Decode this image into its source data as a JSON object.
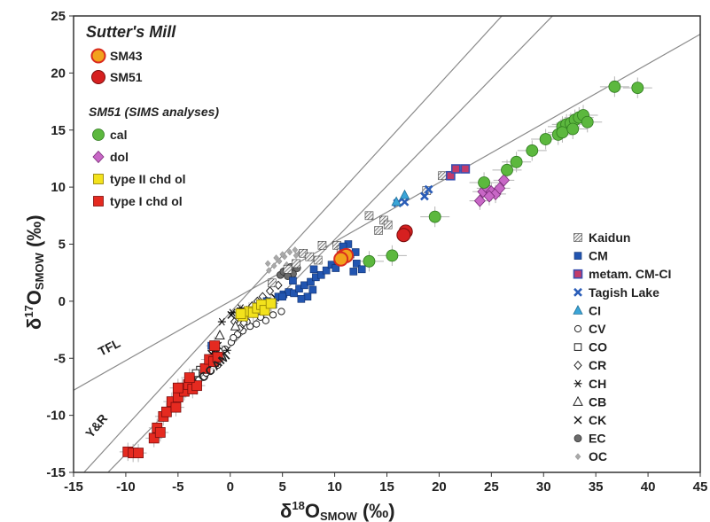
{
  "chart_data": {
    "type": "scatter",
    "title": "",
    "xlabel_main": "δ",
    "xlabel_sup": "18",
    "xlabel_o": "O",
    "xlabel_sub": "SMOW",
    "xlabel_unit": " (‰)",
    "ylabel_main": "δ",
    "ylabel_sup": "17",
    "ylabel_o": "O",
    "ylabel_sub": "SMOW",
    "ylabel_unit": " (‰)",
    "xlim": [
      -15,
      45
    ],
    "ylim": [
      -15,
      25
    ],
    "xticks": [
      -15,
      -10,
      -5,
      0,
      5,
      10,
      15,
      20,
      25,
      30,
      35,
      40,
      45
    ],
    "yticks": [
      -15,
      -10,
      -5,
      0,
      5,
      10,
      15,
      20,
      25
    ],
    "grid": false,
    "colors": {
      "cal": "#5cb83e",
      "dol": "#c867c6",
      "type2": "#f3e21c",
      "type1": "#e52a20",
      "CM": "#2255b0",
      "metam": "#c23a6a",
      "tagish": "#2a5db8",
      "CI": "#3aa5d8",
      "SM43": "#f2a21c",
      "SM51": "#d62020"
    },
    "lines": [
      {
        "name": "TFL",
        "slope": 0.52,
        "intercept": 0.0
      },
      {
        "name": "CCAM",
        "slope": 0.94,
        "intercept": -4.0
      },
      {
        "name": "Y&R",
        "slope": 1.0,
        "intercept": -1.0
      }
    ],
    "line_labels": {
      "TFL": "TFL",
      "CCAM": "CCAM",
      "YR": "Y&R"
    },
    "legend_top": {
      "heading": "Sutter's Mill",
      "items": [
        {
          "label": "SM43",
          "marker": "circle-orange"
        },
        {
          "label": "SM51",
          "marker": "circle-red"
        }
      ],
      "subheading": "SM51 (SIMS analyses)",
      "sims_items": [
        {
          "label": "cal",
          "marker": "circle-green"
        },
        {
          "label": "dol",
          "marker": "diamond-purple"
        },
        {
          "label": "type II chd ol",
          "marker": "square-yellow"
        },
        {
          "label": "type I chd ol",
          "marker": "square-red"
        }
      ]
    },
    "legend_right": [
      {
        "label": "Kaidun",
        "marker": "hatched-square"
      },
      {
        "label": "CM",
        "marker": "square-blue"
      },
      {
        "label": "metam. CM-CI",
        "marker": "square-metam"
      },
      {
        "label": "Tagish Lake",
        "marker": "x-blue"
      },
      {
        "label": "CI",
        "marker": "triangle-cyan"
      },
      {
        "label": "CV",
        "marker": "circle-open"
      },
      {
        "label": "CO",
        "marker": "square-open"
      },
      {
        "label": "CR",
        "marker": "diamond-open"
      },
      {
        "label": "CH",
        "marker": "star"
      },
      {
        "label": "CB",
        "marker": "triangle-open"
      },
      {
        "label": "CK",
        "marker": "x-black"
      },
      {
        "label": "EC",
        "marker": "circle-gray"
      },
      {
        "label": "OC",
        "marker": "diamond-gray"
      }
    ],
    "series": [
      {
        "name": "SM43",
        "marker": "circle-orange",
        "points": [
          [
            10.8,
            3.9
          ],
          [
            11.1,
            4.0
          ],
          [
            10.6,
            3.7
          ]
        ]
      },
      {
        "name": "SM51",
        "marker": "circle-red",
        "points": [
          [
            16.8,
            6.1
          ],
          [
            16.6,
            5.8
          ]
        ]
      },
      {
        "name": "cal",
        "marker": "circle-green",
        "points": [
          [
            13.3,
            3.5
          ],
          [
            15.5,
            4.0
          ],
          [
            19.6,
            7.4
          ],
          [
            24.3,
            10.4
          ],
          [
            26.5,
            11.5
          ],
          [
            27.4,
            12.2
          ],
          [
            28.9,
            13.2
          ],
          [
            30.2,
            14.2
          ],
          [
            31.4,
            14.6
          ],
          [
            31.8,
            15.3
          ],
          [
            32.2,
            15.5
          ],
          [
            32.6,
            15.6
          ],
          [
            33.0,
            15.9
          ],
          [
            33.4,
            16.1
          ],
          [
            33.8,
            16.3
          ],
          [
            34.2,
            15.7
          ],
          [
            31.8,
            14.8
          ],
          [
            32.8,
            15.1
          ],
          [
            36.8,
            18.8
          ],
          [
            39.0,
            18.7
          ]
        ]
      },
      {
        "name": "dol",
        "marker": "diamond-purple",
        "points": [
          [
            23.9,
            8.8
          ],
          [
            24.2,
            9.6
          ],
          [
            24.6,
            9.9
          ],
          [
            25.0,
            9.6
          ],
          [
            25.4,
            9.4
          ],
          [
            24.8,
            9.2
          ],
          [
            25.8,
            9.9
          ],
          [
            26.2,
            10.6
          ]
        ]
      },
      {
        "name": "type II chd ol",
        "marker": "square-yellow",
        "points": [
          [
            1.2,
            -1.3
          ],
          [
            1.8,
            -0.9
          ],
          [
            2.2,
            -1.0
          ],
          [
            2.6,
            -0.6
          ],
          [
            3.0,
            -0.3
          ],
          [
            3.3,
            -0.8
          ],
          [
            3.9,
            -0.2
          ],
          [
            1.0,
            -1.1
          ]
        ]
      },
      {
        "name": "type I chd ol",
        "marker": "square-red",
        "points": [
          [
            -9.8,
            -13.2
          ],
          [
            -9.3,
            -13.3
          ],
          [
            -8.8,
            -13.3
          ],
          [
            -7.3,
            -12.0
          ],
          [
            -7.0,
            -11.1
          ],
          [
            -6.7,
            -11.5
          ],
          [
            -6.4,
            -10.1
          ],
          [
            -6.1,
            -9.7
          ],
          [
            -5.6,
            -8.8
          ],
          [
            -5.2,
            -9.3
          ],
          [
            -5.0,
            -8.4
          ],
          [
            -4.6,
            -7.6
          ],
          [
            -4.4,
            -7.9
          ],
          [
            -4.0,
            -7.3
          ],
          [
            -3.6,
            -7.7
          ],
          [
            -3.2,
            -7.4
          ],
          [
            -2.4,
            -5.9
          ],
          [
            -2.0,
            -5.1
          ],
          [
            -1.6,
            -5.3
          ],
          [
            -1.2,
            -4.9
          ],
          [
            -5.0,
            -7.6
          ],
          [
            -3.9,
            -6.7
          ],
          [
            -1.5,
            -3.9
          ]
        ]
      },
      {
        "name": "Kaidun",
        "marker": "hatched-square",
        "points": [
          [
            4.0,
            1.6
          ],
          [
            5.5,
            2.8
          ],
          [
            6.3,
            3.3
          ],
          [
            7.0,
            4.2
          ],
          [
            7.6,
            3.9
          ],
          [
            8.4,
            3.6
          ],
          [
            8.8,
            4.9
          ],
          [
            10.2,
            4.9
          ],
          [
            10.6,
            4.5
          ],
          [
            13.3,
            7.5
          ],
          [
            14.2,
            6.2
          ],
          [
            14.7,
            7.1
          ],
          [
            15.1,
            6.7
          ],
          [
            18.8,
            9.7
          ],
          [
            20.3,
            11.0
          ]
        ]
      },
      {
        "name": "CM",
        "marker": "square-blue",
        "points": [
          [
            -1.8,
            -3.9
          ],
          [
            3.5,
            0.0
          ],
          [
            4.1,
            -0.3
          ],
          [
            4.6,
            0.4
          ],
          [
            5.1,
            0.6
          ],
          [
            5.6,
            0.8
          ],
          [
            6.1,
            0.7
          ],
          [
            6.6,
            1.1
          ],
          [
            7.1,
            1.4
          ],
          [
            7.7,
            1.7
          ],
          [
            8.2,
            2.1
          ],
          [
            8.7,
            2.3
          ],
          [
            9.2,
            2.7
          ],
          [
            9.7,
            3.2
          ],
          [
            10.3,
            3.5
          ],
          [
            11.0,
            3.7
          ],
          [
            11.5,
            4.1
          ],
          [
            12.1,
            3.3
          ],
          [
            12.6,
            2.8
          ],
          [
            11.8,
            2.6
          ],
          [
            11.3,
            5.0
          ],
          [
            10.8,
            4.8
          ],
          [
            8.0,
            2.8
          ],
          [
            7.4,
            0.4
          ],
          [
            6.0,
            1.8
          ],
          [
            7.9,
            1.0
          ],
          [
            6.8,
            0.2
          ],
          [
            5.0,
            0.4
          ],
          [
            12.0,
            4.3
          ],
          [
            10.1,
            2.9
          ]
        ]
      },
      {
        "name": "metam. CM-CI",
        "marker": "square-metam",
        "points": [
          [
            21.1,
            11.0
          ],
          [
            21.6,
            11.6
          ],
          [
            22.5,
            11.6
          ]
        ]
      },
      {
        "name": "Tagish Lake",
        "marker": "x-blue",
        "points": [
          [
            16.0,
            8.6
          ],
          [
            16.7,
            8.7
          ],
          [
            19.0,
            9.8
          ],
          [
            18.6,
            9.2
          ]
        ]
      },
      {
        "name": "CI",
        "marker": "triangle-cyan",
        "points": [
          [
            15.9,
            8.7
          ],
          [
            16.7,
            9.3
          ]
        ]
      },
      {
        "name": "CV",
        "marker": "circle-open",
        "points": [
          [
            -2.3,
            -6.3
          ],
          [
            -1.2,
            -5.6
          ],
          [
            0.1,
            -3.6
          ],
          [
            0.7,
            -2.9
          ],
          [
            1.2,
            -2.6
          ],
          [
            1.9,
            -2.2
          ],
          [
            2.5,
            -2.0
          ],
          [
            3.4,
            -1.7
          ],
          [
            4.1,
            -1.2
          ],
          [
            4.9,
            -0.9
          ],
          [
            0.3,
            -3.2
          ],
          [
            1.6,
            -1.8
          ],
          [
            -0.5,
            -4.2
          ],
          [
            2.9,
            -1.4
          ],
          [
            -3.0,
            -6.9
          ]
        ]
      },
      {
        "name": "CO",
        "marker": "square-open",
        "points": [
          [
            -3.7,
            -6.7
          ],
          [
            -2.9,
            -6.0
          ],
          [
            -2.1,
            -5.3
          ],
          [
            -1.4,
            -4.7
          ],
          [
            -3.3,
            -6.3
          ]
        ]
      },
      {
        "name": "CR",
        "marker": "diamond-open",
        "points": [
          [
            0.4,
            -1.8
          ],
          [
            1.1,
            -1.3
          ],
          [
            1.6,
            -0.8
          ],
          [
            2.1,
            -0.4
          ],
          [
            2.6,
            0.0
          ],
          [
            3.1,
            0.4
          ],
          [
            3.8,
            0.9
          ],
          [
            4.6,
            1.4
          ],
          [
            1.3,
            -1.9
          ],
          [
            2.3,
            -0.9
          ],
          [
            0.9,
            -2.4
          ],
          [
            3.5,
            0.0
          ]
        ]
      },
      {
        "name": "CH",
        "marker": "star",
        "points": [
          [
            -0.8,
            -1.8
          ],
          [
            0.2,
            -1.0
          ],
          [
            1.0,
            -0.6
          ],
          [
            -1.5,
            -4.7
          ],
          [
            -0.3,
            -4.3
          ]
        ]
      },
      {
        "name": "CB",
        "marker": "triangle-open",
        "points": [
          [
            -1.0,
            -3.0
          ],
          [
            0.5,
            -2.2
          ]
        ]
      },
      {
        "name": "CK",
        "marker": "x-black",
        "points": [
          [
            -1.8,
            -4.6
          ],
          [
            -0.9,
            -4.8
          ],
          [
            -1.2,
            -3.9
          ],
          [
            4.3,
            0.3
          ],
          [
            0.1,
            -1.2
          ]
        ]
      },
      {
        "name": "EC",
        "marker": "circle-gray",
        "points": [
          [
            4.8,
            2.3
          ],
          [
            5.1,
            2.6
          ],
          [
            5.4,
            2.8
          ],
          [
            5.8,
            3.0
          ],
          [
            6.0,
            2.4
          ],
          [
            5.5,
            2.2
          ],
          [
            6.4,
            2.9
          ]
        ]
      },
      {
        "name": "OC",
        "marker": "diamond-gray",
        "points": [
          [
            3.7,
            2.7
          ],
          [
            4.2,
            3.1
          ],
          [
            4.7,
            3.5
          ],
          [
            5.2,
            3.9
          ],
          [
            5.7,
            4.3
          ],
          [
            6.2,
            4.5
          ],
          [
            4.4,
            3.8
          ],
          [
            5.0,
            4.1
          ],
          [
            3.6,
            3.3
          ],
          [
            6.6,
            4.2
          ],
          [
            6.3,
            4.0
          ],
          [
            5.4,
            3.2
          ]
        ]
      }
    ]
  }
}
